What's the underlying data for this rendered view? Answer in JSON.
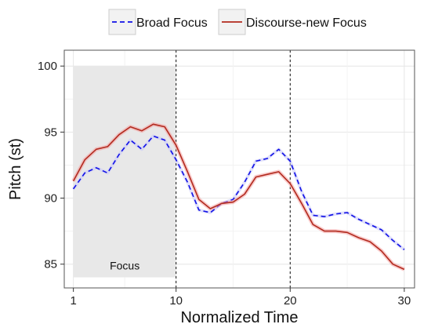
{
  "chart_data": {
    "type": "line",
    "title": "",
    "xlabel": "Normalized Time",
    "ylabel": "Pitch (st)",
    "xlim": [
      0.2,
      30.9
    ],
    "ylim": [
      83.2,
      101.2
    ],
    "x_ticks": [
      1,
      10,
      20,
      30
    ],
    "y_ticks": [
      85,
      90,
      95,
      100
    ],
    "grid": true,
    "legend_position": "top",
    "shaded_region": {
      "x": [
        1,
        10
      ],
      "y": [
        84,
        100
      ],
      "label": "Focus"
    },
    "vertical_lines": [
      10,
      20
    ],
    "x": [
      1,
      2,
      3,
      4,
      5,
      6,
      7,
      8,
      9,
      10,
      11,
      12,
      13,
      14,
      15,
      16,
      17,
      18,
      19,
      20,
      21,
      22,
      23,
      24,
      25,
      26,
      27,
      28,
      29,
      30
    ],
    "series": [
      {
        "name": "Broad Focus",
        "style": "dashed",
        "color": "#1010e6",
        "values": [
          90.7,
          91.9,
          92.3,
          91.9,
          93.3,
          94.4,
          93.7,
          94.7,
          94.4,
          92.9,
          91.2,
          89.1,
          88.9,
          89.6,
          89.9,
          91.2,
          92.8,
          93.0,
          93.7,
          92.8,
          90.5,
          88.7,
          88.6,
          88.8,
          88.9,
          88.4,
          88.0,
          87.6,
          86.8,
          86.1
        ]
      },
      {
        "name": "Discourse-new Focus",
        "style": "solid",
        "color": "#b22a1e",
        "values": [
          91.3,
          92.9,
          93.7,
          93.9,
          94.8,
          95.4,
          95.1,
          95.6,
          95.4,
          94.0,
          92.0,
          89.9,
          89.2,
          89.6,
          89.7,
          90.3,
          91.6,
          91.8,
          92.0,
          91.1,
          89.6,
          88.0,
          87.5,
          87.5,
          87.4,
          87.0,
          86.7,
          86.0,
          85.0,
          84.6
        ]
      }
    ]
  }
}
